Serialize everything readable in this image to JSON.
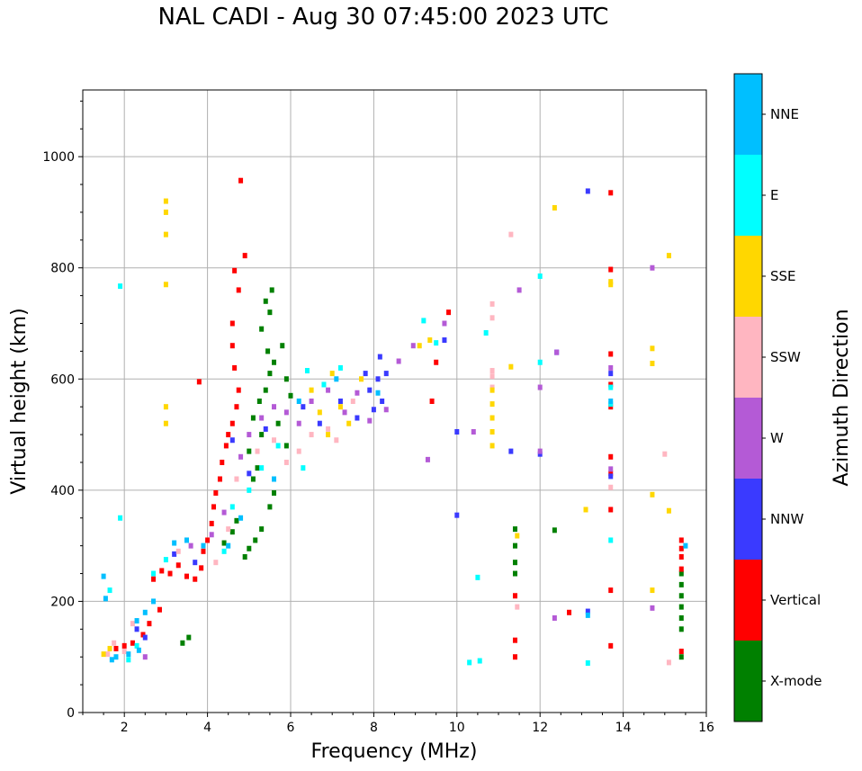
{
  "chart_data": {
    "type": "scatter",
    "title": "NAL CADI - Aug 30 07:45:00 2023 UTC",
    "xlabel": "Frequency (MHz)",
    "ylabel": "Virtual height (km)",
    "xlim": [
      1,
      16
    ],
    "ylim": [
      0,
      1120
    ],
    "xticks": [
      2,
      4,
      6,
      8,
      10,
      12,
      14,
      16
    ],
    "yticks": [
      0,
      200,
      400,
      600,
      800,
      1000
    ],
    "grid": true,
    "colorbar": {
      "label": "Azimuth Direction",
      "categories": [
        {
          "name": "X-mode",
          "color": "#008000"
        },
        {
          "name": "Vertical",
          "color": "#ff0000"
        },
        {
          "name": "NNW",
          "color": "#3a3aff"
        },
        {
          "name": "W",
          "color": "#b45ad6"
        },
        {
          "name": "SSW",
          "color": "#ffb6c1"
        },
        {
          "name": "SSE",
          "color": "#ffd700"
        },
        {
          "name": "E",
          "color": "#00ffff"
        },
        {
          "name": "NNE",
          "color": "#00bfff"
        }
      ]
    },
    "series": [
      {
        "name": "X-mode",
        "points": [
          [
            3.4,
            125
          ],
          [
            3.55,
            135
          ],
          [
            4.4,
            305
          ],
          [
            4.6,
            325
          ],
          [
            4.7,
            345
          ],
          [
            4.9,
            280
          ],
          [
            5.0,
            295
          ],
          [
            5.15,
            310
          ],
          [
            5.3,
            330
          ],
          [
            5.5,
            370
          ],
          [
            5.6,
            395
          ],
          [
            5.1,
            420
          ],
          [
            5.2,
            440
          ],
          [
            5.0,
            470
          ],
          [
            5.3,
            500
          ],
          [
            5.1,
            530
          ],
          [
            5.25,
            560
          ],
          [
            5.4,
            580
          ],
          [
            5.5,
            610
          ],
          [
            5.6,
            630
          ],
          [
            5.45,
            650
          ],
          [
            5.8,
            660
          ],
          [
            5.3,
            690
          ],
          [
            5.5,
            720
          ],
          [
            5.4,
            740
          ],
          [
            5.55,
            760
          ],
          [
            5.9,
            600
          ],
          [
            6.0,
            570
          ],
          [
            5.7,
            520
          ],
          [
            5.9,
            480
          ],
          [
            11.4,
            330
          ],
          [
            11.4,
            300
          ],
          [
            11.4,
            270
          ],
          [
            11.4,
            250
          ],
          [
            12.35,
            328
          ],
          [
            15.4,
            250
          ],
          [
            15.4,
            230
          ],
          [
            15.4,
            210
          ],
          [
            15.4,
            190
          ],
          [
            15.4,
            170
          ],
          [
            15.4,
            150
          ],
          [
            15.4,
            100
          ]
        ]
      },
      {
        "name": "Vertical",
        "points": [
          [
            1.8,
            115
          ],
          [
            2.0,
            120
          ],
          [
            2.2,
            125
          ],
          [
            2.45,
            140
          ],
          [
            2.6,
            160
          ],
          [
            2.85,
            185
          ],
          [
            2.7,
            240
          ],
          [
            2.9,
            255
          ],
          [
            3.1,
            250
          ],
          [
            3.3,
            265
          ],
          [
            3.5,
            245
          ],
          [
            3.7,
            240
          ],
          [
            3.85,
            260
          ],
          [
            3.9,
            290
          ],
          [
            4.0,
            310
          ],
          [
            4.1,
            340
          ],
          [
            4.15,
            370
          ],
          [
            4.2,
            395
          ],
          [
            4.3,
            420
          ],
          [
            4.35,
            450
          ],
          [
            4.45,
            480
          ],
          [
            4.5,
            500
          ],
          [
            4.6,
            520
          ],
          [
            4.7,
            550
          ],
          [
            4.75,
            580
          ],
          [
            4.65,
            620
          ],
          [
            4.6,
            660
          ],
          [
            4.6,
            700
          ],
          [
            4.75,
            760
          ],
          [
            4.65,
            795
          ],
          [
            4.9,
            822
          ],
          [
            4.8,
            957
          ],
          [
            3.8,
            595
          ],
          [
            9.5,
            630
          ],
          [
            9.4,
            560
          ],
          [
            9.8,
            720
          ],
          [
            11.4,
            210
          ],
          [
            11.4,
            130
          ],
          [
            11.4,
            100
          ],
          [
            12.7,
            180
          ],
          [
            13.7,
            935
          ],
          [
            13.7,
            797
          ],
          [
            13.7,
            645
          ],
          [
            13.7,
            590
          ],
          [
            13.7,
            550
          ],
          [
            13.7,
            460
          ],
          [
            13.7,
            430
          ],
          [
            13.7,
            365
          ],
          [
            13.7,
            220
          ],
          [
            13.7,
            120
          ],
          [
            15.4,
            310
          ],
          [
            15.4,
            295
          ],
          [
            15.4,
            280
          ],
          [
            15.4,
            258
          ],
          [
            15.4,
            110
          ]
        ]
      },
      {
        "name": "NNW",
        "points": [
          [
            2.3,
            150
          ],
          [
            2.5,
            135
          ],
          [
            3.2,
            285
          ],
          [
            3.7,
            270
          ],
          [
            4.6,
            490
          ],
          [
            5.0,
            430
          ],
          [
            5.4,
            510
          ],
          [
            6.3,
            550
          ],
          [
            6.7,
            520
          ],
          [
            7.2,
            560
          ],
          [
            7.6,
            530
          ],
          [
            7.9,
            580
          ],
          [
            8.1,
            600
          ],
          [
            8.2,
            560
          ],
          [
            8.0,
            545
          ],
          [
            8.3,
            610
          ],
          [
            8.15,
            640
          ],
          [
            7.8,
            610
          ],
          [
            9.7,
            670
          ],
          [
            10.0,
            505
          ],
          [
            10.0,
            355
          ],
          [
            11.3,
            470
          ],
          [
            12.0,
            465
          ],
          [
            12.4,
            648
          ],
          [
            13.15,
            938
          ],
          [
            13.15,
            182
          ],
          [
            13.7,
            610
          ],
          [
            13.7,
            425
          ]
        ]
      },
      {
        "name": "W",
        "points": [
          [
            2.5,
            100
          ],
          [
            3.6,
            300
          ],
          [
            4.1,
            320
          ],
          [
            4.4,
            360
          ],
          [
            4.8,
            460
          ],
          [
            5.0,
            500
          ],
          [
            5.3,
            530
          ],
          [
            5.6,
            550
          ],
          [
            5.9,
            540
          ],
          [
            6.2,
            520
          ],
          [
            6.5,
            560
          ],
          [
            6.9,
            580
          ],
          [
            7.3,
            540
          ],
          [
            7.6,
            575
          ],
          [
            7.9,
            525
          ],
          [
            8.3,
            545
          ],
          [
            8.6,
            632
          ],
          [
            8.95,
            660
          ],
          [
            9.3,
            455
          ],
          [
            9.7,
            700
          ],
          [
            10.4,
            505
          ],
          [
            11.5,
            760
          ],
          [
            12.0,
            585
          ],
          [
            12.0,
            470
          ],
          [
            12.4,
            648
          ],
          [
            12.35,
            170
          ],
          [
            13.7,
            620
          ],
          [
            13.7,
            438
          ],
          [
            14.7,
            800
          ],
          [
            14.7,
            188
          ]
        ]
      },
      {
        "name": "SSW",
        "points": [
          [
            1.6,
            105
          ],
          [
            1.75,
            125
          ],
          [
            2.0,
            110
          ],
          [
            2.2,
            160
          ],
          [
            3.3,
            290
          ],
          [
            4.2,
            270
          ],
          [
            4.5,
            330
          ],
          [
            4.7,
            420
          ],
          [
            5.2,
            470
          ],
          [
            5.6,
            490
          ],
          [
            5.9,
            450
          ],
          [
            6.2,
            470
          ],
          [
            6.5,
            500
          ],
          [
            6.9,
            510
          ],
          [
            7.1,
            490
          ],
          [
            7.5,
            560
          ],
          [
            10.85,
            735
          ],
          [
            10.85,
            710
          ],
          [
            10.85,
            615
          ],
          [
            10.85,
            605
          ],
          [
            10.85,
            585
          ],
          [
            11.3,
            860
          ],
          [
            11.45,
            190
          ],
          [
            13.7,
            405
          ],
          [
            15.0,
            465
          ],
          [
            15.1,
            90
          ]
        ]
      },
      {
        "name": "SSE",
        "points": [
          [
            3.0,
            920
          ],
          [
            3.0,
            900
          ],
          [
            3.0,
            860
          ],
          [
            3.0,
            770
          ],
          [
            3.0,
            550
          ],
          [
            3.0,
            520
          ],
          [
            1.5,
            105
          ],
          [
            1.65,
            115
          ],
          [
            6.5,
            580
          ],
          [
            6.7,
            540
          ],
          [
            6.9,
            500
          ],
          [
            7.2,
            550
          ],
          [
            7.4,
            520
          ],
          [
            7.7,
            600
          ],
          [
            7.0,
            610
          ],
          [
            9.1,
            660
          ],
          [
            9.35,
            670
          ],
          [
            10.85,
            580
          ],
          [
            10.85,
            555
          ],
          [
            10.85,
            530
          ],
          [
            10.85,
            505
          ],
          [
            10.85,
            480
          ],
          [
            11.3,
            622
          ],
          [
            11.45,
            318
          ],
          [
            12.35,
            908
          ],
          [
            13.1,
            365
          ],
          [
            13.7,
            775
          ],
          [
            13.7,
            770
          ],
          [
            14.7,
            655
          ],
          [
            14.7,
            628
          ],
          [
            14.7,
            392
          ],
          [
            14.7,
            220
          ],
          [
            15.1,
            822
          ],
          [
            15.1,
            363
          ]
        ]
      },
      {
        "name": "E",
        "points": [
          [
            1.65,
            220
          ],
          [
            1.9,
            767
          ],
          [
            1.9,
            350
          ],
          [
            2.1,
            95
          ],
          [
            2.3,
            120
          ],
          [
            2.7,
            250
          ],
          [
            3.0,
            275
          ],
          [
            4.4,
            290
          ],
          [
            4.6,
            370
          ],
          [
            5.0,
            400
          ],
          [
            5.3,
            440
          ],
          [
            5.7,
            480
          ],
          [
            6.3,
            440
          ],
          [
            6.4,
            615
          ],
          [
            6.8,
            590
          ],
          [
            7.2,
            620
          ],
          [
            9.2,
            705
          ],
          [
            9.5,
            665
          ],
          [
            10.3,
            90
          ],
          [
            10.55,
            93
          ],
          [
            10.5,
            243
          ],
          [
            10.7,
            683
          ],
          [
            12.0,
            785
          ],
          [
            12.0,
            630
          ],
          [
            13.15,
            89
          ],
          [
            13.7,
            585
          ],
          [
            13.7,
            555
          ],
          [
            13.7,
            310
          ]
        ]
      },
      {
        "name": "NNE",
        "points": [
          [
            1.5,
            245
          ],
          [
            1.55,
            205
          ],
          [
            1.7,
            95
          ],
          [
            1.8,
            100
          ],
          [
            2.1,
            105
          ],
          [
            2.3,
            165
          ],
          [
            2.35,
            112
          ],
          [
            2.5,
            180
          ],
          [
            2.7,
            200
          ],
          [
            3.2,
            305
          ],
          [
            3.5,
            310
          ],
          [
            3.9,
            300
          ],
          [
            4.5,
            300
          ],
          [
            4.8,
            350
          ],
          [
            5.6,
            420
          ],
          [
            6.2,
            560
          ],
          [
            7.1,
            600
          ],
          [
            8.1,
            575
          ],
          [
            13.15,
            175
          ],
          [
            13.7,
            560
          ],
          [
            15.5,
            300
          ]
        ]
      }
    ]
  }
}
